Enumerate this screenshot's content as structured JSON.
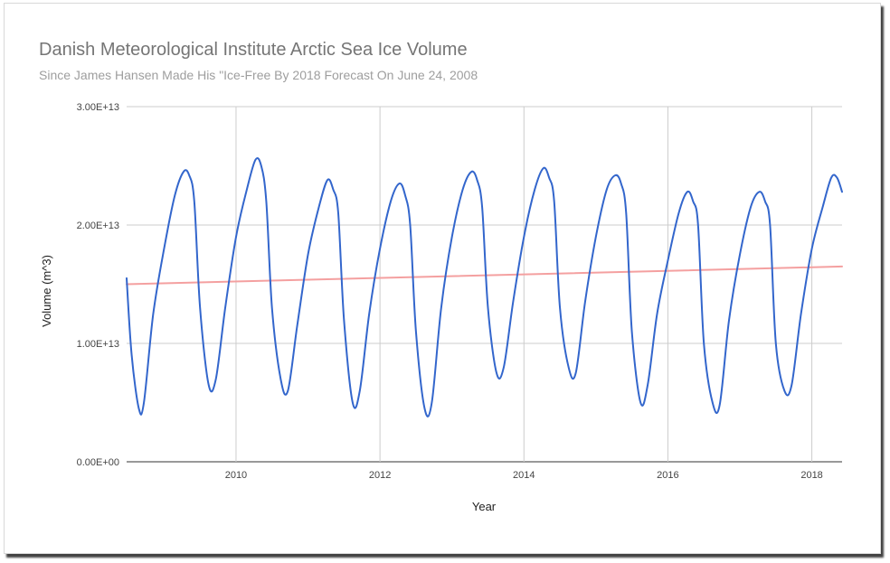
{
  "chart_data": {
    "type": "line",
    "title": "Danish Meteorological Institute Arctic Sea Ice Volume",
    "subtitle": "Since James Hansen Made His \"Ice-Free By 2018 Forecast On June 24, 2008",
    "xlabel": "Year",
    "ylabel": "Volume (m^3)",
    "xlim": [
      2008.48,
      2018.42
    ],
    "ylim": [
      0,
      30000000000000.0
    ],
    "x_ticks": [
      2010,
      2012,
      2014,
      2016,
      2018
    ],
    "x_tick_labels": [
      "2010",
      "2012",
      "2014",
      "2016",
      "2018"
    ],
    "y_ticks": [
      0,
      10000000000000.0,
      20000000000000.0,
      30000000000000.0
    ],
    "y_tick_labels": [
      "0.00E+00",
      "1.00E+13",
      "2.00E+13",
      "3.00E+13"
    ],
    "grid": true,
    "legend": "none",
    "series": [
      {
        "color": "#3366cc",
        "x": [
          2008.48,
          2008.55,
          2008.65,
          2008.72,
          2008.85,
          2009.0,
          2009.15,
          2009.27,
          2009.35,
          2009.42,
          2009.5,
          2009.62,
          2009.72,
          2009.85,
          2010.0,
          2010.15,
          2010.27,
          2010.35,
          2010.42,
          2010.5,
          2010.62,
          2010.72,
          2010.85,
          2011.0,
          2011.15,
          2011.27,
          2011.35,
          2011.42,
          2011.5,
          2011.62,
          2011.72,
          2011.85,
          2012.0,
          2012.15,
          2012.27,
          2012.35,
          2012.42,
          2012.5,
          2012.62,
          2012.72,
          2012.85,
          2013.0,
          2013.15,
          2013.27,
          2013.35,
          2013.42,
          2013.5,
          2013.62,
          2013.72,
          2013.85,
          2014.0,
          2014.15,
          2014.27,
          2014.35,
          2014.42,
          2014.5,
          2014.62,
          2014.72,
          2014.85,
          2015.0,
          2015.15,
          2015.27,
          2015.35,
          2015.42,
          2015.5,
          2015.62,
          2015.72,
          2015.85,
          2016.0,
          2016.15,
          2016.27,
          2016.35,
          2016.42,
          2016.5,
          2016.62,
          2016.72,
          2016.85,
          2017.0,
          2017.15,
          2017.27,
          2017.35,
          2017.42,
          2017.5,
          2017.62,
          2017.72,
          2017.85,
          2018.0,
          2018.15,
          2018.27,
          2018.35,
          2018.42
        ],
        "values": [
          15500000000000.0,
          9000000000000.0,
          4500000000000.0,
          5000000000000.0,
          12500000000000.0,
          18000000000000.0,
          22500000000000.0,
          24500000000000.0,
          24200000000000.0,
          22000000000000.0,
          13000000000000.0,
          6500000000000.0,
          7000000000000.0,
          13000000000000.0,
          19000000000000.0,
          23000000000000.0,
          25500000000000.0,
          25000000000000.0,
          22000000000000.0,
          13000000000000.0,
          7000000000000.0,
          6000000000000.0,
          11500000000000.0,
          17500000000000.0,
          21500000000000.0,
          23800000000000.0,
          23000000000000.0,
          21000000000000.0,
          12000000000000.0,
          5000000000000.0,
          6000000000000.0,
          12500000000000.0,
          18000000000000.0,
          22000000000000.0,
          23500000000000.0,
          22500000000000.0,
          20000000000000.0,
          11000000000000.0,
          4500000000000.0,
          5000000000000.0,
          13000000000000.0,
          19000000000000.0,
          23000000000000.0,
          24500000000000.0,
          23800000000000.0,
          21500000000000.0,
          13000000000000.0,
          7500000000000.0,
          8000000000000.0,
          13500000000000.0,
          19000000000000.0,
          23000000000000.0,
          24800000000000.0,
          24000000000000.0,
          22000000000000.0,
          13000000000000.0,
          8000000000000.0,
          7500000000000.0,
          13500000000000.0,
          19000000000000.0,
          23000000000000.0,
          24200000000000.0,
          23500000000000.0,
          21000000000000.0,
          11000000000000.0,
          5000000000000.0,
          6500000000000.0,
          12500000000000.0,
          17000000000000.0,
          21000000000000.0,
          22800000000000.0,
          22000000000000.0,
          20000000000000.0,
          10000000000000.0,
          5000000000000.0,
          4800000000000.0,
          12000000000000.0,
          17500000000000.0,
          21500000000000.0,
          22800000000000.0,
          22000000000000.0,
          20000000000000.0,
          10000000000000.0,
          6000000000000.0,
          6500000000000.0,
          12500000000000.0,
          18000000000000.0,
          21500000000000.0,
          24000000000000.0,
          24000000000000.0,
          22800000000000.0
        ]
      },
      {
        "color": "#f4a0a0",
        "x": [
          2008.48,
          2018.42
        ],
        "values": [
          15000000000000.0,
          16500000000000.0
        ]
      }
    ]
  }
}
